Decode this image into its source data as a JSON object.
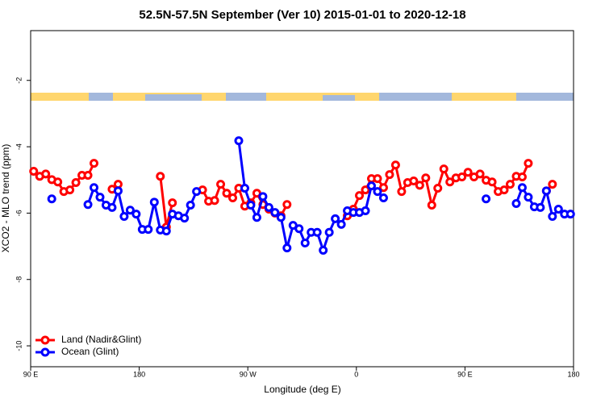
{
  "chart_data": {
    "type": "line",
    "title": "52.5N-57.5N September (Ver 10)   2015-01-01 to 2020-12-18",
    "x_label": "Longitude (deg E)",
    "y_label": "XCO2 - MLO trend (ppm)",
    "x": [
      92.5,
      97.5,
      102.5,
      107.5,
      112.5,
      117.5,
      122.5,
      127.5,
      132.5,
      137.5,
      142.5,
      147.5,
      152.5,
      157.5,
      162.5,
      167.5,
      172.5,
      177.5,
      182.5,
      187.5,
      192.5,
      197.5,
      202.5,
      207.5,
      212.5,
      217.5,
      222.5,
      227.5,
      232.5,
      237.5,
      242.5,
      247.5,
      252.5,
      257.5,
      262.5,
      267.5,
      272.5,
      277.5,
      282.5,
      287.5,
      292.5,
      297.5,
      302.5,
      307.5,
      312.5,
      317.5,
      322.5,
      327.5,
      332.5,
      337.5,
      342.5,
      347.5,
      352.5,
      357.5,
      362.5,
      367.5,
      372.5,
      377.5,
      382.5,
      387.5,
      392.5,
      397.5,
      402.5,
      407.5,
      412.5,
      417.5,
      422.5,
      427.5,
      432.5,
      437.5,
      442.5,
      447.5,
      452.5,
      457.5,
      462.5,
      467.5,
      472.5,
      477.5,
      482.5,
      487.5,
      492.5,
      497.5,
      502.5,
      507.5,
      512.5,
      517.5,
      522.5,
      527.5,
      532.5,
      537.5
    ],
    "series": [
      {
        "name": "Land (Nadir&Glint)",
        "color": "#ff0000",
        "values": [
          -4.74,
          -4.89,
          -4.82,
          -4.99,
          -5.06,
          -5.35,
          -5.3,
          -5.08,
          -4.86,
          -4.86,
          -4.5,
          null,
          null,
          -5.28,
          -5.13,
          null,
          null,
          null,
          null,
          null,
          null,
          -4.89,
          -6.42,
          -5.69,
          null,
          null,
          null,
          null,
          -5.3,
          -5.64,
          -5.62,
          -5.13,
          -5.4,
          -5.54,
          -5.25,
          -5.79,
          -5.69,
          -5.4,
          -5.74,
          -5.88,
          -6.0,
          -6.08,
          -5.74,
          null,
          null,
          null,
          null,
          null,
          null,
          null,
          null,
          null,
          -6.08,
          -5.88,
          -5.47,
          -5.3,
          -4.96,
          -4.96,
          -5.23,
          -4.84,
          -4.55,
          -5.35,
          -5.08,
          -5.03,
          -5.16,
          -4.94,
          -5.76,
          -5.25,
          -4.67,
          -5.06,
          -4.94,
          -4.91,
          -4.77,
          -4.91,
          -4.82,
          -5.01,
          -5.06,
          -5.35,
          -5.3,
          -5.13,
          -4.89,
          -4.91,
          -4.5,
          null,
          null,
          -5.33,
          -5.13,
          null,
          null,
          null
        ]
      },
      {
        "name": "Ocean (Glint)",
        "color": "#0000ff",
        "values": [
          null,
          null,
          null,
          -5.57,
          null,
          null,
          null,
          null,
          null,
          -5.74,
          -5.23,
          -5.52,
          -5.76,
          -5.83,
          -5.33,
          -6.1,
          -5.91,
          -6.03,
          -6.49,
          -6.49,
          -5.67,
          -6.51,
          -6.54,
          -6.03,
          -6.08,
          -6.15,
          -5.76,
          -5.35,
          null,
          null,
          null,
          null,
          null,
          null,
          -3.82,
          -5.25,
          -5.76,
          -6.13,
          -5.5,
          -5.83,
          -5.98,
          -6.13,
          -7.05,
          -6.37,
          -6.47,
          -6.9,
          -6.58,
          -6.58,
          -7.12,
          -6.58,
          -6.17,
          -6.34,
          -5.93,
          -5.98,
          -5.98,
          -5.93,
          -5.18,
          -5.35,
          -5.54,
          null,
          null,
          null,
          null,
          null,
          null,
          null,
          null,
          null,
          null,
          null,
          null,
          null,
          null,
          null,
          null,
          -5.57,
          null,
          null,
          null,
          null,
          -5.71,
          -5.23,
          -5.52,
          -5.81,
          -5.83,
          -5.33,
          -6.1,
          -5.88,
          -6.03,
          -6.03
        ]
      }
    ],
    "xlim": [
      90,
      540
    ],
    "xticks": [
      {
        "value": 90,
        "label": "90 E"
      },
      {
        "value": 180,
        "label": "180"
      },
      {
        "value": 270,
        "label": "90 W"
      },
      {
        "value": 360,
        "label": "0"
      },
      {
        "value": 450,
        "label": "90 E"
      },
      {
        "value": 540,
        "label": "180"
      }
    ],
    "ylim": [
      -10.63,
      -0.5
    ],
    "yticks": [
      -10,
      -8,
      -6,
      -4,
      -2
    ],
    "legend": "bottom-left"
  }
}
